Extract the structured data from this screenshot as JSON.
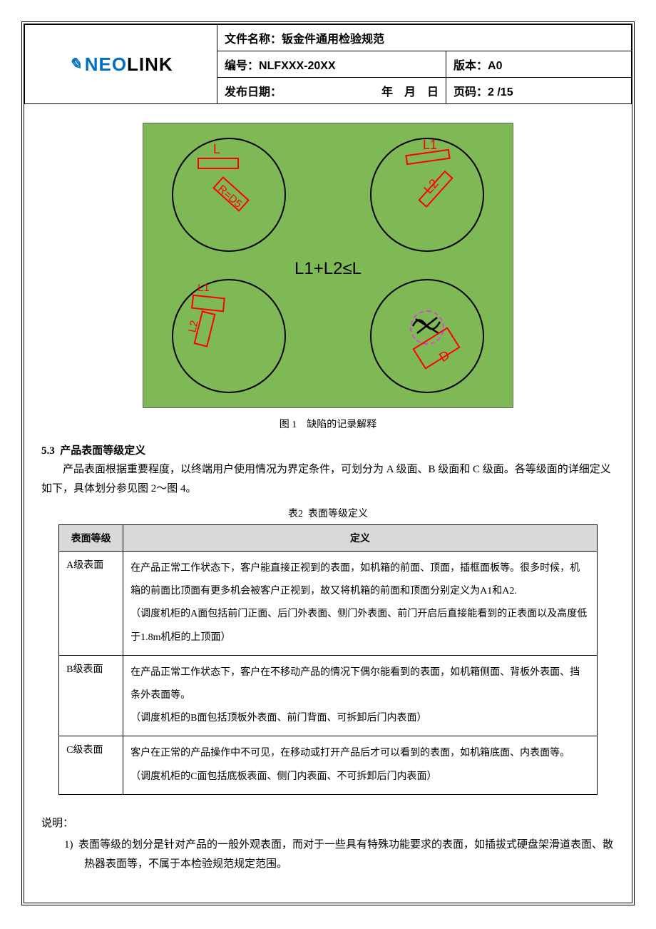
{
  "header": {
    "doc_name_label": "文件名称：",
    "doc_name": "钣金件通用检验规范",
    "doc_no_label": "编号：",
    "doc_no": "NLFXXX-20XX",
    "version_label": "版本：",
    "version": "A0",
    "issue_date_label": "发布日期：",
    "issue_date_blank": "年 月 日",
    "page_label": "页码：",
    "page": "2 /15"
  },
  "logo": {
    "pre": "NEO",
    "post": "LINK"
  },
  "diagram": {
    "background_color": "#7fb956",
    "circle_stroke": "#000000",
    "annotation_color": "#ff0000",
    "magenta": "#e040e0",
    "labels": {
      "L": "L",
      "R": "R=D5",
      "L1": "L1",
      "L2": "L2",
      "D": "D"
    },
    "formula": "L1+L2≤L"
  },
  "fig1_caption": "图 1 缺陷的记录解释",
  "section53": {
    "heading": "5.3 产品表面等级定义",
    "paragraph": "产品表面根据重要程度，以终端用户使用情况为界定条件，可划分为 A 级面、B 级面和 C 级面。各等级面的详细定义如下，具体划分参见图 2～图 4。"
  },
  "table2": {
    "caption": "表2 表面等级定义",
    "col1": "表面等级",
    "col2": "定义",
    "rows": [
      {
        "grade": "A级表面",
        "def": "在产品正常工作状态下，客户能直接正视到的表面，如机箱的前面、顶面，插框面板等。很多时候，机箱的前面比顶面有更多机会被客户正视到，故又将机箱的前面和顶面分别定义为A1和A2.\n（调度机柜的A面包括前门正面、后门外表面、侧门外表面、前门开启后直接能看到的正表面以及高度低于1.8m机柜的上顶面）"
      },
      {
        "grade": "B级表面",
        "def": "在产品正常工作状态下，客户在不移动产品的情况下偶尔能看到的表面，如机箱侧面、背板外表面、挡条外表面等。\n（调度机柜的B面包括顶板外表面、前门背面、可拆卸后门内表面）"
      },
      {
        "grade": "C级表面",
        "def": "客户在正常的产品操作中不可见，在移动或打开产品后才可以看到的表面，如机箱底面、内表面等。\n（调度机柜的C面包括底板表面、侧门内表面、不可拆卸后门内表面）"
      }
    ]
  },
  "notes": {
    "label": "说明：",
    "item1_no": "1)",
    "item1": "表面等级的划分是针对产品的一般外观表面，而对于一些具有特殊功能要求的表面，如插拔式硬盘架滑道表面、散热器表面等，不属于本检验规范规定范围。"
  }
}
